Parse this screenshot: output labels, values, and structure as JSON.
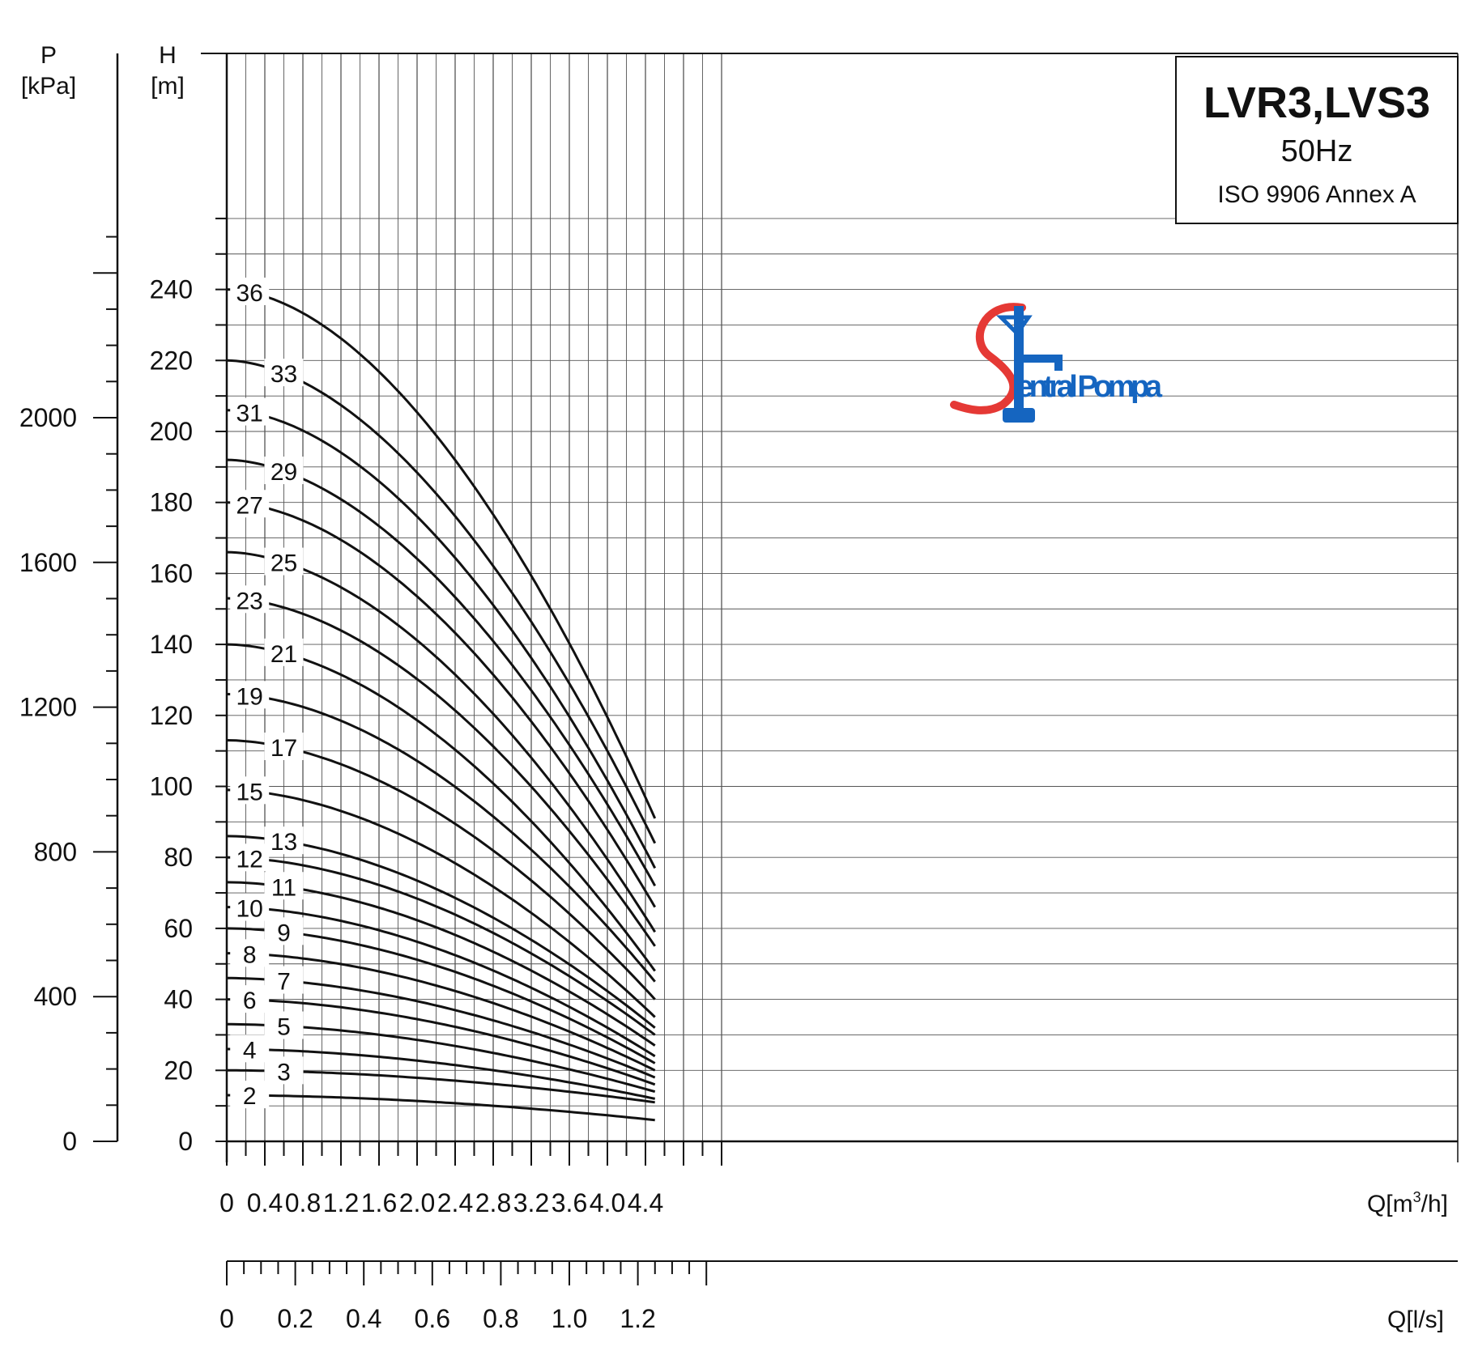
{
  "chart_data": {
    "type": "line",
    "title": "LVR3,LVS3",
    "subtitle": "50Hz",
    "standard": "ISO 9906 Annex A",
    "watermark": {
      "text": "entral Pompa",
      "letter": "S",
      "letter_color": "#e53935",
      "text_color": "#1565c0"
    },
    "x_axis": {
      "label": "Q[m³/h]",
      "label_parts": [
        "Q[m",
        "3",
        "/h]"
      ],
      "ticks": [
        "0",
        "0.4",
        "0.8",
        "1.2",
        "1.6",
        "2.0",
        "2.4",
        "2.8",
        "3.2",
        "3.6",
        "4.0",
        "4.4"
      ],
      "range": [
        0,
        5.2
      ]
    },
    "x2_axis": {
      "label": "Q[l/s]",
      "ticks": [
        "0",
        "0.2",
        "0.4",
        "0.6",
        "0.8",
        "1.0",
        "1.2"
      ],
      "range": [
        0,
        1.44
      ]
    },
    "y_axis": {
      "label_line1": "H",
      "label_line2": "[m]",
      "ticks": [
        "0",
        "20",
        "40",
        "60",
        "80",
        "100",
        "120",
        "140",
        "160",
        "180",
        "200",
        "220",
        "240"
      ],
      "range": [
        0,
        260
      ]
    },
    "y2_axis": {
      "label_line1": "P",
      "label_line2": "[kPa]",
      "ticks": [
        "0",
        "400",
        "800",
        "1200",
        "1600",
        "2000"
      ],
      "range": [
        0,
        2550
      ]
    },
    "grid": true,
    "series": [
      {
        "name": "36",
        "h0": 240,
        "h_end": 91
      },
      {
        "name": "33",
        "h0": 220,
        "h_end": 84
      },
      {
        "name": "31",
        "h0": 206,
        "h_end": 77
      },
      {
        "name": "29",
        "h0": 192,
        "h_end": 72
      },
      {
        "name": "27",
        "h0": 180,
        "h_end": 66
      },
      {
        "name": "25",
        "h0": 166,
        "h_end": 59
      },
      {
        "name": "23",
        "h0": 153,
        "h_end": 55
      },
      {
        "name": "21",
        "h0": 140,
        "h_end": 48
      },
      {
        "name": "19",
        "h0": 126,
        "h_end": 45
      },
      {
        "name": "17",
        "h0": 113,
        "h_end": 40
      },
      {
        "name": "15",
        "h0": 99,
        "h_end": 35
      },
      {
        "name": "13",
        "h0": 86,
        "h_end": 32
      },
      {
        "name": "12",
        "h0": 80,
        "h_end": 30
      },
      {
        "name": "11",
        "h0": 73,
        "h_end": 27
      },
      {
        "name": "10",
        "h0": 66,
        "h_end": 24
      },
      {
        "name": "9",
        "h0": 60,
        "h_end": 22
      },
      {
        "name": "8",
        "h0": 53,
        "h_end": 20
      },
      {
        "name": "7",
        "h0": 46,
        "h_end": 18
      },
      {
        "name": "6",
        "h0": 40,
        "h_end": 16
      },
      {
        "name": "5",
        "h0": 33,
        "h_end": 14
      },
      {
        "name": "4",
        "h0": 26,
        "h_end": 12
      },
      {
        "name": "3",
        "h0": 20,
        "h_end": 11
      },
      {
        "name": "2",
        "h0": 13,
        "h_end": 6
      }
    ],
    "q_max": 4.5,
    "label_q": {
      "near": 0.24,
      "far": 0.6
    }
  }
}
